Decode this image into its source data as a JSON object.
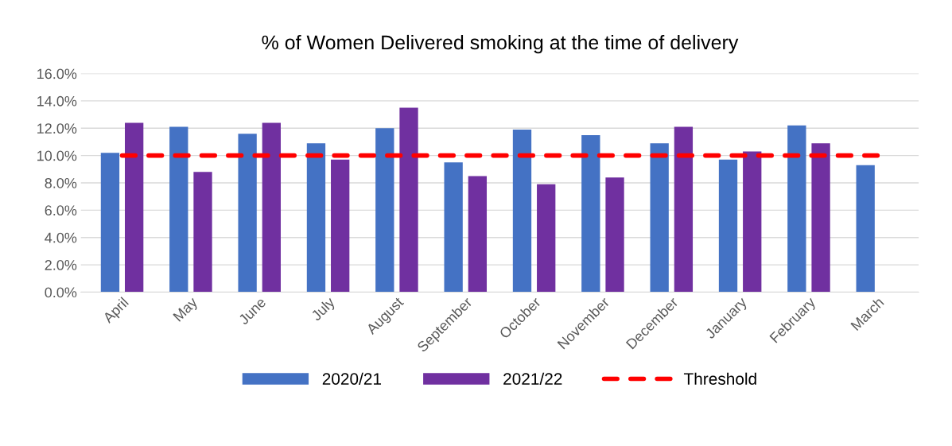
{
  "chart_data": {
    "type": "bar",
    "title": "% of Women Delivered smoking at the time of delivery",
    "categories": [
      "April",
      "May",
      "June",
      "July",
      "August",
      "September",
      "October",
      "November",
      "December",
      "January",
      "February",
      "March"
    ],
    "series": [
      {
        "name": "2020/21",
        "color": "#4472c4",
        "values": [
          10.2,
          12.1,
          11.6,
          10.9,
          12.0,
          9.5,
          11.9,
          11.5,
          10.9,
          9.7,
          12.2,
          9.3
        ]
      },
      {
        "name": "2021/22",
        "color": "#7030a0",
        "values": [
          12.4,
          8.8,
          12.4,
          9.7,
          13.5,
          8.5,
          7.9,
          8.4,
          12.1,
          10.3,
          10.9,
          null
        ]
      },
      {
        "name": "Threshold",
        "type": "line",
        "color": "#ff0000",
        "line_style": "dashed",
        "values": [
          10,
          10,
          10,
          10,
          10,
          10,
          10,
          10,
          10,
          10,
          10,
          10
        ]
      }
    ],
    "ylim": [
      0,
      16
    ],
    "yticks": [
      {
        "value": 0,
        "label": "0.0%"
      },
      {
        "value": 2,
        "label": "2.0%"
      },
      {
        "value": 4,
        "label": "4.0%"
      },
      {
        "value": 6,
        "label": "6.0%"
      },
      {
        "value": 8,
        "label": "8.0%"
      },
      {
        "value": 10,
        "label": "10.0%"
      },
      {
        "value": 12,
        "label": "12.0%"
      },
      {
        "value": 14,
        "label": "14.0%"
      },
      {
        "value": 16,
        "label": "16.0%"
      }
    ],
    "grid": "y",
    "legend": "bottom"
  }
}
